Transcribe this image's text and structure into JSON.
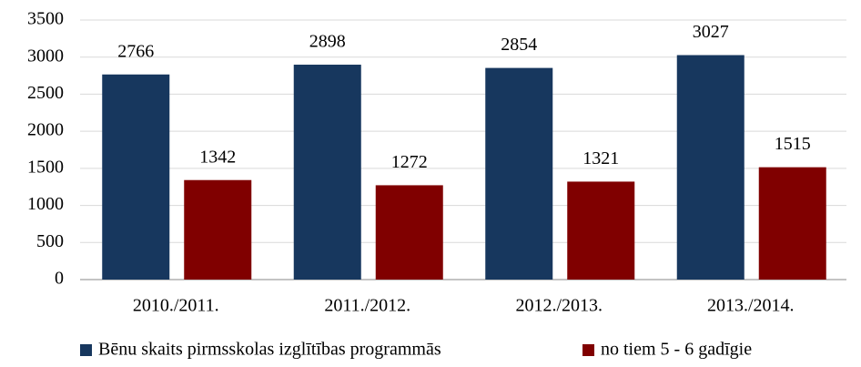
{
  "chart_data": {
    "type": "bar",
    "categories": [
      "2010./2011.",
      "2011./2012.",
      "2012./2013.",
      "2013./2014."
    ],
    "series": [
      {
        "name": "Bēnu skaits pirmsskolas izglītības programmās",
        "color": "#17375e",
        "values": [
          2766,
          2898,
          2854,
          3027
        ]
      },
      {
        "name": "no tiem 5 - 6 gadīgie",
        "color": "#800000",
        "values": [
          1342,
          1272,
          1321,
          1515
        ]
      }
    ],
    "ylim": [
      0,
      3500
    ],
    "yticks": [
      0,
      500,
      1000,
      1500,
      2000,
      2500,
      3000,
      3500
    ],
    "grid": true
  }
}
